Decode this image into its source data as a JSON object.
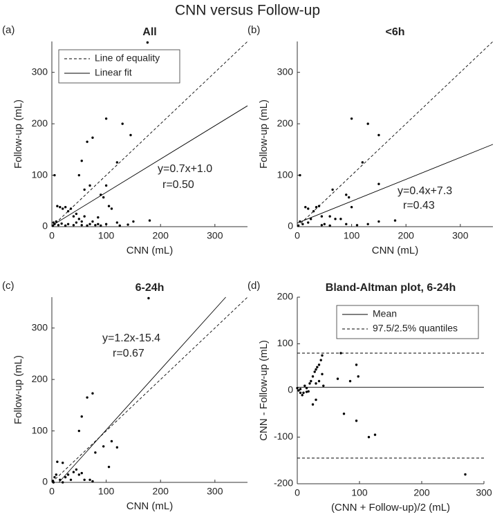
{
  "title": "CNN versus Follow-up",
  "chart_data": [
    {
      "type": "scatter",
      "panel_label": "(a)",
      "title": "All",
      "xlabel": "CNN (mL)",
      "ylabel": "Follow-up (mL)",
      "xlim": [
        0,
        360
      ],
      "ylim": [
        0,
        360
      ],
      "xticks": [
        0,
        100,
        200,
        300
      ],
      "yticks": [
        0,
        100,
        200,
        300
      ],
      "legend": "upper left",
      "series": [
        {
          "color": "#000000",
          "x": [
            100,
            130,
            145,
            120,
            65,
            75,
            55,
            50,
            60,
            70,
            90,
            95,
            100,
            110,
            105,
            150,
            180,
            85,
            5,
            10,
            15,
            20,
            25,
            30,
            35,
            40,
            45,
            50,
            55,
            60,
            70,
            80,
            90,
            100,
            120,
            140,
            5,
            8,
            2,
            3,
            12,
            18,
            25,
            30,
            40,
            45,
            55,
            65,
            75,
            85,
            125,
            176
          ],
          "y": [
            210,
            200,
            178,
            125,
            165,
            173,
            128,
            100,
            72,
            80,
            62,
            57,
            80,
            35,
            40,
            10,
            12,
            18,
            100,
            40,
            38,
            35,
            38,
            30,
            35,
            20,
            25,
            15,
            10,
            20,
            5,
            3,
            2,
            5,
            8,
            4,
            5,
            10,
            2,
            8,
            3,
            6,
            2,
            5,
            3,
            8,
            3,
            2,
            10,
            5,
            2,
            358
          ]
        }
      ],
      "lines": [
        {
          "name": "Line of equality",
          "dashed": true,
          "color": "#000000",
          "x": [
            0,
            360
          ],
          "y": [
            0,
            360
          ]
        },
        {
          "name": "Linear fit",
          "dashed": false,
          "color": "#000000",
          "x": [
            0,
            360
          ],
          "y": [
            2,
            235
          ]
        }
      ],
      "annotations": [
        "y=0.7x+1.0",
        "r=0.50"
      ]
    },
    {
      "type": "scatter",
      "panel_label": "(b)",
      "title": "<6h",
      "xlabel": "CNN (mL)",
      "ylabel": "Follow-up (mL)",
      "xlim": [
        0,
        360
      ],
      "ylim": [
        0,
        360
      ],
      "xticks": [
        0,
        100,
        200,
        300
      ],
      "yticks": [
        0,
        100,
        200,
        300
      ],
      "series": [
        {
          "color": "#000000",
          "x": [
            100,
            130,
            150,
            120,
            150,
            90,
            95,
            65,
            5,
            15,
            20,
            30,
            35,
            40,
            45,
            60,
            70,
            100,
            80,
            180,
            150,
            10,
            5,
            2,
            20,
            25,
            50,
            60,
            90,
            110,
            130,
            45
          ],
          "y": [
            210,
            200,
            178,
            125,
            83,
            62,
            57,
            72,
            100,
            38,
            35,
            30,
            38,
            40,
            20,
            20,
            15,
            38,
            15,
            12,
            10,
            5,
            10,
            2,
            8,
            15,
            5,
            2,
            5,
            3,
            5,
            3
          ]
        }
      ],
      "lines": [
        {
          "dashed": true,
          "color": "#000000",
          "x": [
            0,
            360
          ],
          "y": [
            0,
            360
          ]
        },
        {
          "dashed": false,
          "color": "#000000",
          "x": [
            0,
            360
          ],
          "y": [
            7,
            160
          ]
        }
      ],
      "annotations": [
        "y=0.4x+7.3",
        "r=0.43"
      ]
    },
    {
      "type": "scatter",
      "panel_label": "(c)",
      "title": "6-24h",
      "xlabel": "CNN (mL)",
      "ylabel": "Follow-up (mL)",
      "xlim": [
        0,
        360
      ],
      "ylim": [
        0,
        360
      ],
      "xticks": [
        0,
        100,
        200,
        300
      ],
      "yticks": [
        0,
        100,
        200,
        300
      ],
      "series": [
        {
          "color": "#000000",
          "x": [
            178,
            65,
            75,
            55,
            50,
            95,
            110,
            120,
            105,
            80,
            70,
            10,
            20,
            5,
            2,
            8,
            15,
            25,
            30,
            35,
            40,
            45,
            50,
            55,
            60,
            75,
            3,
            20
          ],
          "y": [
            358,
            165,
            173,
            128,
            100,
            70,
            80,
            68,
            30,
            58,
            5,
            40,
            38,
            10,
            3,
            15,
            5,
            10,
            15,
            5,
            20,
            25,
            15,
            18,
            5,
            2,
            0,
            0
          ]
        }
      ],
      "lines": [
        {
          "dashed": true,
          "color": "#000000",
          "x": [
            0,
            360
          ],
          "y": [
            0,
            360
          ]
        },
        {
          "dashed": false,
          "color": "#000000",
          "x": [
            13,
            320
          ],
          "y": [
            0,
            360
          ]
        }
      ],
      "annotations": [
        "y=1.2x-15.4",
        "r=0.67"
      ]
    },
    {
      "type": "bland-altman",
      "panel_label": "(d)",
      "title": "Bland-Altman plot, 6-24h",
      "xlabel": "(CNN + Follow-up)/2 (mL)",
      "ylabel": "CNN - Follow-up (mL)",
      "xlim": [
        0,
        300
      ],
      "ylim": [
        -200,
        200
      ],
      "xticks": [
        0,
        100,
        200,
        300
      ],
      "yticks": [
        -200,
        -100,
        0,
        100,
        200
      ],
      "legend": "upper right",
      "series": [
        {
          "color": "#000000",
          "x": [
            0,
            2,
            5,
            8,
            10,
            12,
            15,
            18,
            20,
            22,
            25,
            25,
            28,
            30,
            30,
            32,
            35,
            35,
            38,
            40,
            40,
            42,
            65,
            70,
            75,
            85,
            95,
            95,
            98,
            115,
            125,
            270,
            5,
            15,
            30
          ],
          "y": [
            5,
            0,
            -5,
            -10,
            -5,
            10,
            5,
            -2,
            15,
            20,
            30,
            -30,
            40,
            45,
            -20,
            50,
            55,
            20,
            65,
            75,
            35,
            10,
            25,
            80,
            -50,
            20,
            -65,
            55,
            30,
            -100,
            -95,
            -180,
            3,
            -3,
            15
          ]
        }
      ],
      "hlines": [
        {
          "name": "Mean",
          "dashed": false,
          "color": "#000000",
          "values": [
            7
          ]
        },
        {
          "name": "97.5/2.5% quantiles",
          "dashed": true,
          "color": "#000000",
          "values": [
            80,
            -145
          ]
        }
      ]
    }
  ]
}
